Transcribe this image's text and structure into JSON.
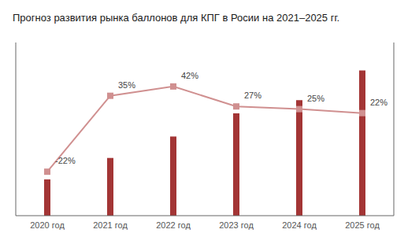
{
  "chart_data": {
    "type": "bar",
    "title": "Прогноз развития рынка баллонов для КПГ в Росии на 2021–2025 гг.",
    "categories": [
      "2020 год",
      "2021 год",
      "2022 год",
      "2023 год",
      "2024 год",
      "2025 год"
    ],
    "series": [
      {
        "type": "bar",
        "color": "#a33535",
        "values": [
          22,
          35,
          48,
          62,
          70,
          88
        ]
      },
      {
        "type": "line",
        "axis": "y2",
        "color": "#d09090",
        "marker": "square",
        "values": [
          -22,
          35,
          42,
          27,
          25,
          22
        ],
        "value_labels": [
          "-22%",
          "35%",
          "42%",
          "27%",
          "25%",
          "22%"
        ],
        "data_labels": true
      }
    ],
    "ylim": [
      0,
      105
    ],
    "y2lim": [
      -55,
      75
    ],
    "tick_labels": "x",
    "grid": false
  }
}
